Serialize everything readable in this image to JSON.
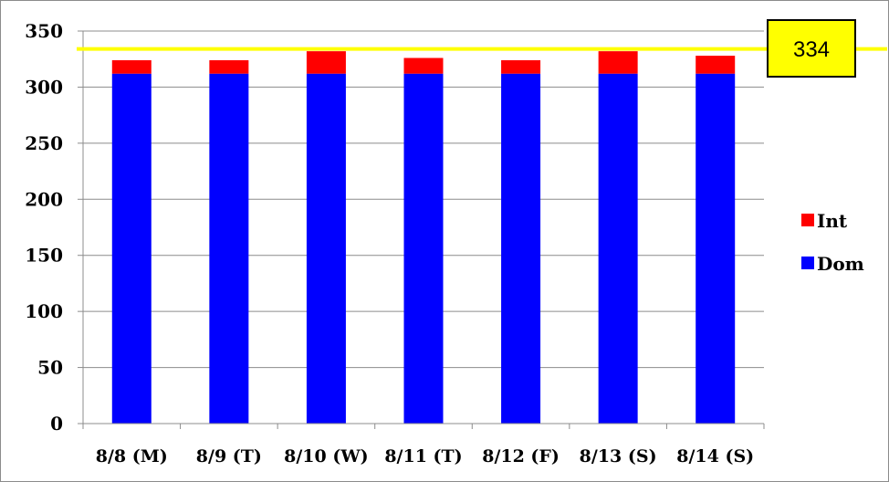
{
  "chart_data": {
    "type": "bar",
    "stacked": true,
    "categories": [
      "8/8 (M)",
      "8/9 (T)",
      "8/10 (W)",
      "8/11 (T)",
      "8/12 (F)",
      "8/13 (S)",
      "8/14 (S)"
    ],
    "series": [
      {
        "name": "Dom",
        "color": "#0000ff",
        "values": [
          312,
          312,
          312,
          312,
          312,
          312,
          312
        ]
      },
      {
        "name": "Int",
        "color": "#ff0000",
        "values": [
          12,
          12,
          20,
          14,
          12,
          20,
          16
        ]
      }
    ],
    "ylim": [
      0,
      350
    ],
    "yticks": [
      0,
      50,
      100,
      150,
      200,
      250,
      300,
      350
    ],
    "ytick_labels": [
      "0",
      "50",
      "100",
      "150",
      "200",
      "250",
      "300",
      "350"
    ],
    "grid": true,
    "legend_position": "right",
    "legend_entries": [
      "Int",
      "Dom"
    ],
    "reference_line": {
      "value": 334,
      "label": "334",
      "color": "#ffff00"
    }
  }
}
